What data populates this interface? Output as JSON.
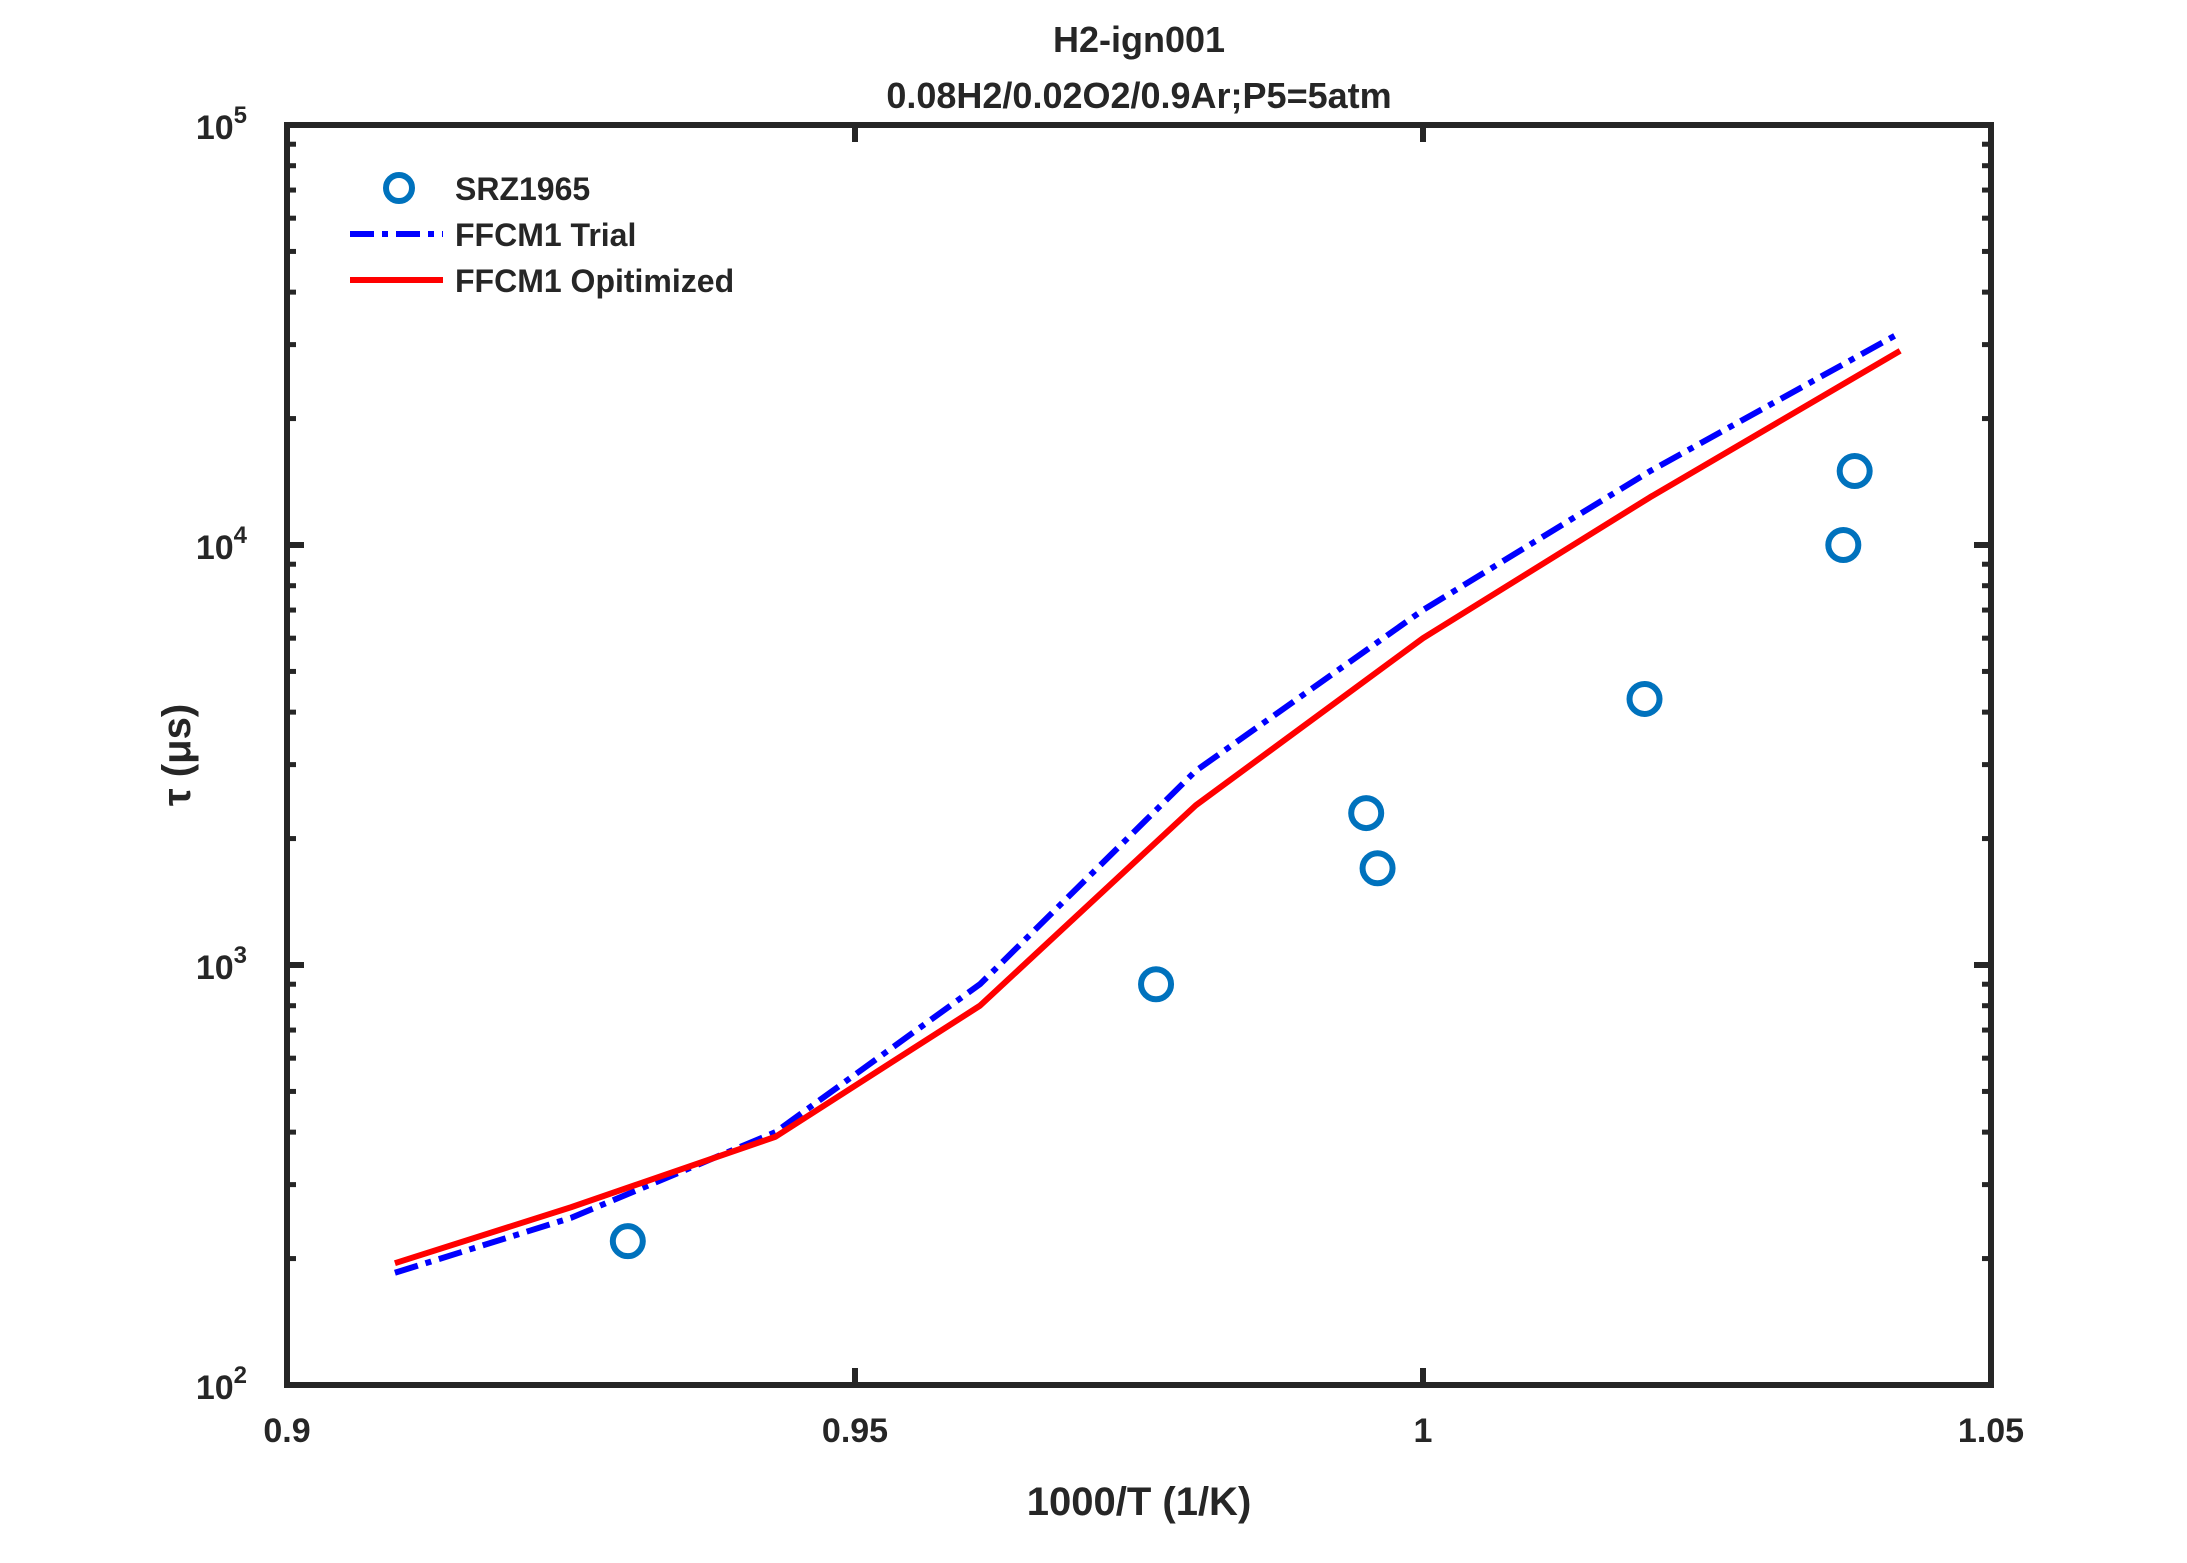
{
  "chart_data": {
    "type": "line",
    "title": "H2-ign001",
    "subtitle": "0.08H2/0.02O2/0.9Ar;P5=5atm",
    "xlabel": "1000/T (1/K)",
    "ylabel": "τ (μs)",
    "xlim": [
      0.9,
      1.05
    ],
    "ylim": [
      100,
      100000
    ],
    "yscale": "log",
    "xticks": [
      0.9,
      0.95,
      1,
      1.05
    ],
    "xtick_labels": [
      "0.9",
      "0.95",
      "1",
      "1.05"
    ],
    "yticks": [
      100,
      1000,
      10000,
      100000
    ],
    "ytick_labels": [
      {
        "base": "10",
        "exp": "2"
      },
      {
        "base": "10",
        "exp": "3"
      },
      {
        "base": "10",
        "exp": "4"
      },
      {
        "base": "10",
        "exp": "5"
      }
    ],
    "grid": false,
    "legend_position": "top-left",
    "series": [
      {
        "name": "SRZ1965",
        "type": "scatter",
        "color": "#0072BD",
        "x": [
          0.93,
          0.9765,
          0.995,
          0.996,
          1.0195,
          1.037,
          1.038
        ],
        "y": [
          220,
          900,
          2300,
          1700,
          4300,
          10000,
          15000
        ]
      },
      {
        "name": "FFCM1 Trial",
        "type": "line",
        "style": "dashdot",
        "color": "#0000FF",
        "x": [
          0.9095,
          0.925,
          0.943,
          0.961,
          0.98,
          1.0,
          1.02,
          1.042
        ],
        "y": [
          185,
          250,
          400,
          900,
          2900,
          7000,
          15000,
          32000
        ]
      },
      {
        "name": "FFCM1 Opitimized",
        "type": "line",
        "style": "solid",
        "color": "#FF0000",
        "x": [
          0.9095,
          0.925,
          0.943,
          0.961,
          0.98,
          1.0,
          1.02,
          1.042
        ],
        "y": [
          195,
          265,
          390,
          800,
          2400,
          6000,
          13000,
          29000
        ]
      }
    ]
  }
}
